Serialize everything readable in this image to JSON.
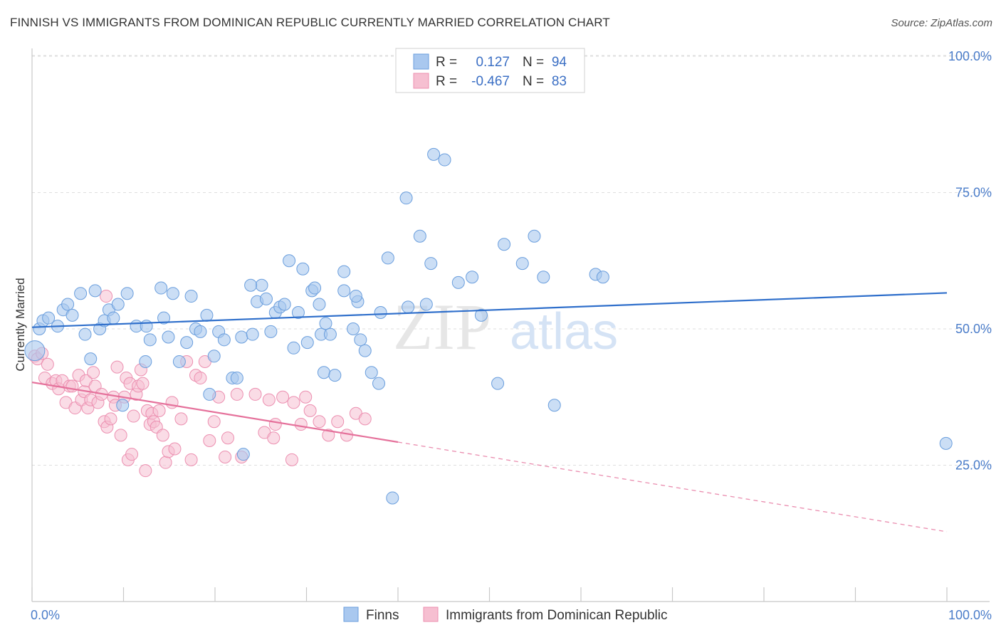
{
  "header": {
    "title": "FINNISH VS IMMIGRANTS FROM DOMINICAN REPUBLIC CURRENTLY MARRIED CORRELATION CHART",
    "source": "Source: ZipAtlas.com"
  },
  "watermark": "ZIPatlas",
  "colors": {
    "finns_fill": "#a9c8ef",
    "finns_stroke": "#6a9edd",
    "finns_line": "#2f6fcb",
    "dom_fill": "#f6bfd1",
    "dom_stroke": "#ec8fb0",
    "dom_line": "#e5719b",
    "axis_text": "#4a7cc9"
  },
  "legend": {
    "r_label": "R =",
    "n_label": "N =",
    "rows": [
      {
        "r": "0.127",
        "n": "94"
      },
      {
        "r": "-0.467",
        "n": "83"
      }
    ]
  },
  "chart_data": {
    "type": "scatter",
    "title": "FINNISH VS IMMIGRANTS FROM DOMINICAN REPUBLIC CURRENTLY MARRIED CORRELATION CHART",
    "xlabel": "",
    "ylabel": "Currently Married",
    "xlim": [
      0,
      100
    ],
    "ylim": [
      0,
      105
    ],
    "x_tick_labels": [
      "0.0%",
      "100.0%"
    ],
    "y_ticks": [
      25,
      50,
      75,
      100
    ],
    "y_tick_labels": [
      "25.0%",
      "50.0%",
      "75.0%",
      "100.0%"
    ],
    "grid": true,
    "legend_position": "top-center",
    "series": [
      {
        "name": "Finns",
        "r": 0.127,
        "n": 94,
        "trend": {
          "x": [
            0,
            100
          ],
          "y": [
            50.3,
            56.6
          ]
        },
        "points": [
          [
            0.3,
            46
          ],
          [
            0.8,
            50
          ],
          [
            1.2,
            51.5
          ],
          [
            1.8,
            52
          ],
          [
            2.8,
            50.5
          ],
          [
            3.4,
            53.5
          ],
          [
            3.9,
            54.5
          ],
          [
            4.4,
            52.5
          ],
          [
            5.3,
            56.5
          ],
          [
            5.8,
            49
          ],
          [
            6.4,
            44.5
          ],
          [
            6.9,
            57
          ],
          [
            7.4,
            50
          ],
          [
            7.9,
            51.5
          ],
          [
            8.4,
            53.5
          ],
          [
            8.9,
            52
          ],
          [
            9.4,
            54.5
          ],
          [
            10.4,
            56.5
          ],
          [
            9.9,
            36
          ],
          [
            11.4,
            50.5
          ],
          [
            12.4,
            44
          ],
          [
            12.9,
            48
          ],
          [
            12.5,
            50.5
          ],
          [
            14.1,
            57.5
          ],
          [
            14.4,
            52
          ],
          [
            14.9,
            48.5
          ],
          [
            15.4,
            56.5
          ],
          [
            16.1,
            44
          ],
          [
            16.9,
            47.5
          ],
          [
            17.4,
            56
          ],
          [
            17.9,
            50
          ],
          [
            18.4,
            49.5
          ],
          [
            19.1,
            52.5
          ],
          [
            19.4,
            38
          ],
          [
            19.9,
            45
          ],
          [
            20.4,
            49.5
          ],
          [
            21,
            48
          ],
          [
            21.9,
            41
          ],
          [
            22.4,
            41
          ],
          [
            22.9,
            48.5
          ],
          [
            23.1,
            27
          ],
          [
            24.1,
            49
          ],
          [
            24.6,
            55
          ],
          [
            25.1,
            58
          ],
          [
            25.6,
            55.5
          ],
          [
            26.1,
            49.5
          ],
          [
            26.6,
            53
          ],
          [
            27.1,
            54
          ],
          [
            27.6,
            54.5
          ],
          [
            28.1,
            62.5
          ],
          [
            28.6,
            46.5
          ],
          [
            29.1,
            53
          ],
          [
            29.6,
            61
          ],
          [
            30.1,
            47.5
          ],
          [
            30.6,
            57
          ],
          [
            30.9,
            57.5
          ],
          [
            31.6,
            49
          ],
          [
            32.1,
            51
          ],
          [
            32.6,
            49
          ],
          [
            31.9,
            42
          ],
          [
            33.1,
            41.5
          ],
          [
            34.1,
            57
          ],
          [
            34.1,
            60.5
          ],
          [
            35.1,
            50
          ],
          [
            35.6,
            55
          ],
          [
            35.9,
            48
          ],
          [
            35.4,
            56
          ],
          [
            36.4,
            46
          ],
          [
            37.1,
            42
          ],
          [
            37.9,
            40
          ],
          [
            38.1,
            53
          ],
          [
            38.9,
            63
          ],
          [
            39.4,
            19
          ],
          [
            40.9,
            74
          ],
          [
            41.1,
            54
          ],
          [
            42.4,
            67
          ],
          [
            43.1,
            54.5
          ],
          [
            43.6,
            62
          ],
          [
            43.9,
            82
          ],
          [
            45.1,
            81
          ],
          [
            46.6,
            58.5
          ],
          [
            48.1,
            59.5
          ],
          [
            49.1,
            52.5
          ],
          [
            50.9,
            40
          ],
          [
            51.6,
            65.5
          ],
          [
            53.6,
            62
          ],
          [
            54.9,
            67
          ],
          [
            55.9,
            59.5
          ],
          [
            57.1,
            36
          ],
          [
            61.6,
            60
          ],
          [
            62.4,
            59.5
          ],
          [
            99.9,
            29
          ],
          [
            31.4,
            54.5
          ],
          [
            23.9,
            58
          ]
        ]
      },
      {
        "name": "Immigrants from Dominican Republic",
        "r": -0.467,
        "n": 83,
        "trend": {
          "x": [
            0,
            100
          ],
          "y": [
            40.2,
            12.8
          ]
        },
        "trend_solid_until_x": 40,
        "points": [
          [
            0.3,
            45
          ],
          [
            0.6,
            44.5
          ],
          [
            1.1,
            45.5
          ],
          [
            1.4,
            41
          ],
          [
            1.7,
            43.5
          ],
          [
            2.2,
            40
          ],
          [
            2.6,
            40.5
          ],
          [
            2.9,
            39
          ],
          [
            3.3,
            40.5
          ],
          [
            3.7,
            36.5
          ],
          [
            4.1,
            39.5
          ],
          [
            4.4,
            39.5
          ],
          [
            4.7,
            35.5
          ],
          [
            5.1,
            41.5
          ],
          [
            5.4,
            37
          ],
          [
            5.7,
            38.5
          ],
          [
            5.9,
            40.5
          ],
          [
            6.1,
            35.5
          ],
          [
            6.4,
            37
          ],
          [
            6.7,
            42
          ],
          [
            6.9,
            39.5
          ],
          [
            7.2,
            36.5
          ],
          [
            7.6,
            38
          ],
          [
            7.9,
            33
          ],
          [
            8.1,
            56
          ],
          [
            8.2,
            32
          ],
          [
            8.6,
            33.5
          ],
          [
            8.9,
            37.5
          ],
          [
            9.1,
            36
          ],
          [
            9.3,
            43
          ],
          [
            9.7,
            30.5
          ],
          [
            10.1,
            37.5
          ],
          [
            10.3,
            41
          ],
          [
            10.5,
            26
          ],
          [
            10.7,
            40
          ],
          [
            10.9,
            27
          ],
          [
            11.1,
            34
          ],
          [
            11.4,
            38
          ],
          [
            11.6,
            39.5
          ],
          [
            11.9,
            42.5
          ],
          [
            12.1,
            40
          ],
          [
            12.4,
            24
          ],
          [
            12.6,
            35
          ],
          [
            12.9,
            32.5
          ],
          [
            13.1,
            34.5
          ],
          [
            13.3,
            33
          ],
          [
            13.6,
            32
          ],
          [
            13.9,
            35
          ],
          [
            14.3,
            30.5
          ],
          [
            14.6,
            25.5
          ],
          [
            14.9,
            27.5
          ],
          [
            15.3,
            36.5
          ],
          [
            15.6,
            28
          ],
          [
            16.3,
            33.5
          ],
          [
            16.9,
            44
          ],
          [
            17.4,
            26
          ],
          [
            17.9,
            41.5
          ],
          [
            18.4,
            41
          ],
          [
            18.9,
            44
          ],
          [
            19.4,
            29.5
          ],
          [
            19.9,
            33
          ],
          [
            20.4,
            37.5
          ],
          [
            21.1,
            26.5
          ],
          [
            21.4,
            30
          ],
          [
            22.4,
            38
          ],
          [
            22.9,
            26.5
          ],
          [
            24.4,
            38
          ],
          [
            25.4,
            31
          ],
          [
            25.9,
            37
          ],
          [
            26.4,
            30
          ],
          [
            26.6,
            32.5
          ],
          [
            27.4,
            37.5
          ],
          [
            28.4,
            26
          ],
          [
            28.6,
            36.5
          ],
          [
            29.4,
            32.5
          ],
          [
            29.9,
            37.5
          ],
          [
            30.4,
            35
          ],
          [
            31.4,
            33
          ],
          [
            32.4,
            30.5
          ],
          [
            33.4,
            33
          ],
          [
            34.4,
            30.5
          ],
          [
            35.4,
            34.5
          ],
          [
            36.4,
            33.5
          ]
        ]
      }
    ]
  },
  "bottom_legend": {
    "items": [
      "Finns",
      "Immigrants from Dominican Republic"
    ]
  }
}
